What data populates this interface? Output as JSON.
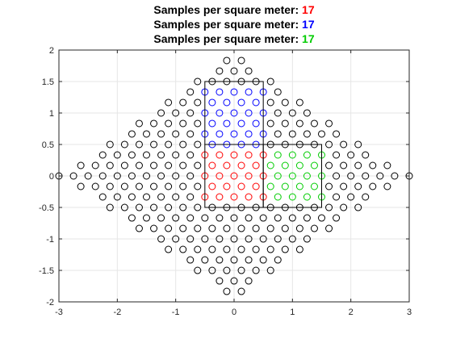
{
  "titles": [
    {
      "prefix": "Samples per square meter: ",
      "count": "17",
      "color": "#ff0000"
    },
    {
      "prefix": "Samples per square meter: ",
      "count": "17",
      "color": "#0000ff"
    },
    {
      "prefix": "Samples per square meter: ",
      "count": "17",
      "color": "#00cc00"
    }
  ],
  "chart_data": {
    "type": "scatter",
    "xlim": [
      -3,
      3
    ],
    "ylim": [
      -2,
      2
    ],
    "x_ticks": [
      "-3",
      "-2",
      "-1",
      "0",
      "1",
      "2",
      "3"
    ],
    "y_ticks": [
      "-2",
      "-1.5",
      "-1",
      "-0.5",
      "0",
      "0.5",
      "1",
      "1.5",
      "2"
    ],
    "grid": true,
    "marker": "open-circle",
    "lattice": {
      "description": "hexagonal sample lattice inside a diamond |x|/3 + |y|/2 <= 1",
      "dx": 0.25,
      "dy": 0.1667,
      "row_offset": 0.125
    },
    "regions": [
      {
        "color": "#ff0000",
        "xlim": [
          -0.5,
          0.5
        ],
        "ylim": [
          -0.5,
          0.5
        ],
        "samples": 17
      },
      {
        "color": "#0000ff",
        "xlim": [
          -0.5,
          0.5
        ],
        "ylim": [
          0.5,
          1.5
        ],
        "samples": 17
      },
      {
        "color": "#00cc00",
        "xlim": [
          0.5,
          1.5
        ],
        "ylim": [
          -0.5,
          0.5
        ],
        "samples": 17
      }
    ],
    "default_color": "#000000"
  }
}
